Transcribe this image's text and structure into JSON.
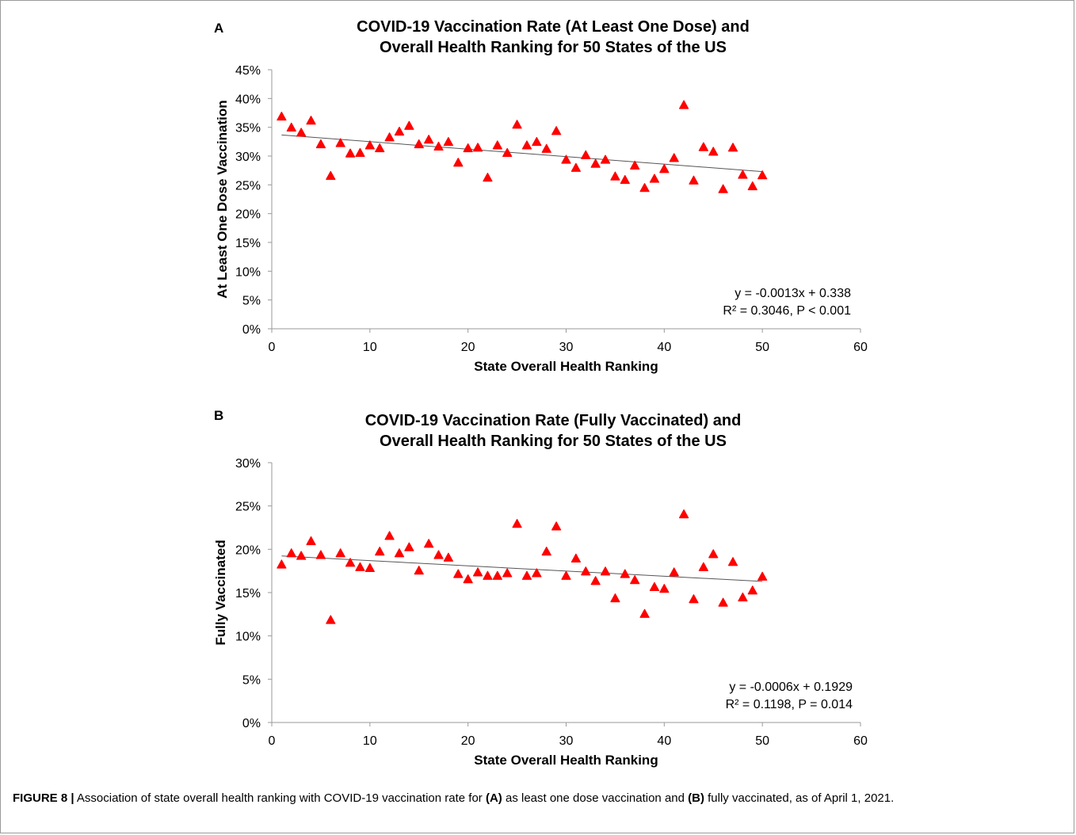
{
  "figure": {
    "caption_label": "FIGURE 8 |",
    "caption_parts": [
      {
        "text": " Association of state overall health ranking with COVID-19 vaccination rate for ",
        "bold": false
      },
      {
        "text": "(A)",
        "bold": true
      },
      {
        "text": " as least one dose vaccination and ",
        "bold": false
      },
      {
        "text": "(B)",
        "bold": true
      },
      {
        "text": " fully vaccinated, as of April 1, 2021.",
        "bold": false
      }
    ]
  },
  "chart_data": [
    {
      "panel": "A",
      "type": "scatter",
      "title_lines": [
        "COVID-19 Vaccination Rate (At Least One Dose) and",
        "Overall Health Ranking for 50 States of the US"
      ],
      "xlabel": "State Overall Health Ranking",
      "ylabel": "At Least One Dose Vaccination",
      "xlim": [
        0,
        60
      ],
      "ylim": [
        0,
        0.45
      ],
      "x_ticks": [
        0,
        10,
        20,
        30,
        40,
        50,
        60
      ],
      "y_ticks": [
        0,
        0.05,
        0.1,
        0.15,
        0.2,
        0.25,
        0.3,
        0.35,
        0.4,
        0.45
      ],
      "y_tick_labels": [
        "0%",
        "5%",
        "10%",
        "15%",
        "20%",
        "25%",
        "30%",
        "35%",
        "40%",
        "45%"
      ],
      "marker": "triangle",
      "marker_color": "#ff0000",
      "trendline": {
        "slope": -0.0013,
        "intercept": 0.338,
        "x_range": [
          1,
          50
        ],
        "color": "#555555"
      },
      "annotation": [
        "y = -0.0013x + 0.338",
        "R² = 0.3046, P < 0.001"
      ],
      "x": [
        1,
        2,
        3,
        4,
        5,
        6,
        7,
        8,
        9,
        10,
        11,
        12,
        13,
        14,
        15,
        16,
        17,
        18,
        19,
        20,
        21,
        22,
        23,
        24,
        25,
        26,
        27,
        28,
        29,
        30,
        31,
        32,
        33,
        34,
        35,
        36,
        37,
        38,
        39,
        40,
        41,
        42,
        43,
        44,
        45,
        46,
        47,
        48,
        49,
        50
      ],
      "y": [
        0.368,
        0.349,
        0.34,
        0.361,
        0.32,
        0.265,
        0.322,
        0.304,
        0.305,
        0.318,
        0.313,
        0.332,
        0.342,
        0.352,
        0.32,
        0.328,
        0.316,
        0.324,
        0.288,
        0.313,
        0.314,
        0.262,
        0.318,
        0.305,
        0.354,
        0.318,
        0.324,
        0.312,
        0.343,
        0.293,
        0.279,
        0.301,
        0.286,
        0.293,
        0.264,
        0.258,
        0.283,
        0.244,
        0.26,
        0.277,
        0.296,
        0.388,
        0.257,
        0.315,
        0.307,
        0.242,
        0.314,
        0.267,
        0.247,
        0.266
      ]
    },
    {
      "panel": "B",
      "type": "scatter",
      "title_lines": [
        "COVID-19 Vaccination Rate (Fully Vaccinated) and",
        "Overall Health Ranking for 50 States of the US"
      ],
      "xlabel": "State Overall Health Ranking",
      "ylabel": "Fully Vaccinated",
      "xlim": [
        0,
        60
      ],
      "ylim": [
        0,
        0.3
      ],
      "x_ticks": [
        0,
        10,
        20,
        30,
        40,
        50,
        60
      ],
      "y_ticks": [
        0,
        0.05,
        0.1,
        0.15,
        0.2,
        0.25,
        0.3
      ],
      "y_tick_labels": [
        "0%",
        "5%",
        "10%",
        "15%",
        "20%",
        "25%",
        "30%"
      ],
      "marker": "triangle",
      "marker_color": "#ff0000",
      "trendline": {
        "slope": -0.0006,
        "intercept": 0.1929,
        "x_range": [
          1,
          50
        ],
        "color": "#555555"
      },
      "annotation": [
        "y = -0.0006x + 0.1929",
        "R² = 0.1198, P = 0.014"
      ],
      "x": [
        1,
        2,
        3,
        4,
        5,
        6,
        7,
        8,
        9,
        10,
        11,
        12,
        13,
        14,
        15,
        16,
        17,
        18,
        19,
        20,
        21,
        22,
        23,
        24,
        25,
        26,
        27,
        28,
        29,
        30,
        31,
        32,
        33,
        34,
        35,
        36,
        37,
        38,
        39,
        40,
        41,
        42,
        43,
        44,
        45,
        46,
        47,
        48,
        49,
        50
      ],
      "y": [
        0.182,
        0.195,
        0.192,
        0.209,
        0.193,
        0.118,
        0.195,
        0.184,
        0.179,
        0.178,
        0.197,
        0.215,
        0.195,
        0.202,
        0.175,
        0.206,
        0.193,
        0.19,
        0.171,
        0.165,
        0.173,
        0.169,
        0.169,
        0.172,
        0.229,
        0.169,
        0.172,
        0.197,
        0.226,
        0.169,
        0.189,
        0.174,
        0.163,
        0.174,
        0.143,
        0.171,
        0.164,
        0.125,
        0.156,
        0.154,
        0.173,
        0.24,
        0.142,
        0.179,
        0.194,
        0.138,
        0.185,
        0.144,
        0.152,
        0.168
      ]
    }
  ]
}
